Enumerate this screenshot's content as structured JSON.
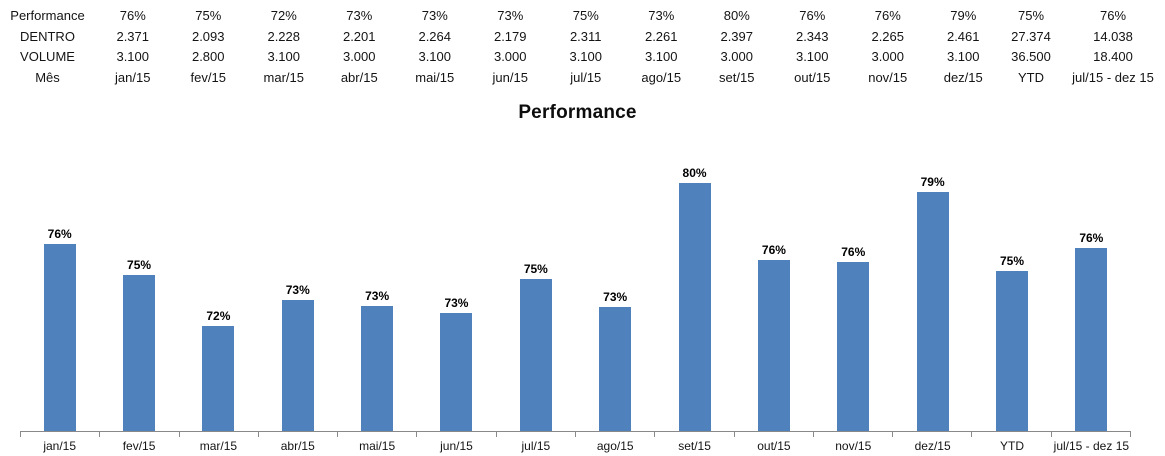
{
  "page": {
    "background": "#ffffff"
  },
  "table": {
    "rows": [
      {
        "label": "Performance",
        "values": [
          "76%",
          "75%",
          "72%",
          "73%",
          "73%",
          "73%",
          "75%",
          "73%",
          "80%",
          "76%",
          "76%",
          "79%",
          "75%",
          "76%"
        ]
      },
      {
        "label": "DENTRO",
        "values": [
          "2.371",
          "2.093",
          "2.228",
          "2.201",
          "2.264",
          "2.179",
          "2.311",
          "2.261",
          "2.397",
          "2.343",
          "2.265",
          "2.461",
          "27.374",
          "14.038"
        ]
      },
      {
        "label": "VOLUME",
        "values": [
          "3.100",
          "2.800",
          "3.100",
          "3.000",
          "3.100",
          "3.000",
          "3.100",
          "3.100",
          "3.000",
          "3.100",
          "3.000",
          "3.100",
          "36.500",
          "18.400"
        ]
      },
      {
        "label": "Mês",
        "values": [
          "jan/15",
          "fev/15",
          "mar/15",
          "abr/15",
          "mai/15",
          "jun/15",
          "jul/15",
          "ago/15",
          "set/15",
          "out/15",
          "nov/15",
          "dez/15",
          "YTD",
          "jul/15 - dez 15"
        ]
      }
    ]
  },
  "chart_data": {
    "type": "bar",
    "title": "Performance",
    "categories": [
      "jan/15",
      "fev/15",
      "mar/15",
      "abr/15",
      "mai/15",
      "jun/15",
      "jul/15",
      "ago/15",
      "set/15",
      "out/15",
      "nov/15",
      "dez/15",
      "YTD",
      "jul/15 - dez 15"
    ],
    "values": [
      76.48,
      74.75,
      71.87,
      73.37,
      73.03,
      72.63,
      74.55,
      72.94,
      79.9,
      75.58,
      75.5,
      79.39,
      75.0,
      76.29
    ],
    "labels": [
      "76%",
      "75%",
      "72%",
      "73%",
      "73%",
      "73%",
      "75%",
      "73%",
      "80%",
      "76%",
      "76%",
      "79%",
      "75%",
      "76%"
    ],
    "xlabel": "",
    "ylabel": "",
    "ylim": [
      66,
      82
    ],
    "grid": false,
    "legend": false,
    "bar_color": "#4f81bd",
    "axis_color": "#898989",
    "label_color": "#000000"
  }
}
